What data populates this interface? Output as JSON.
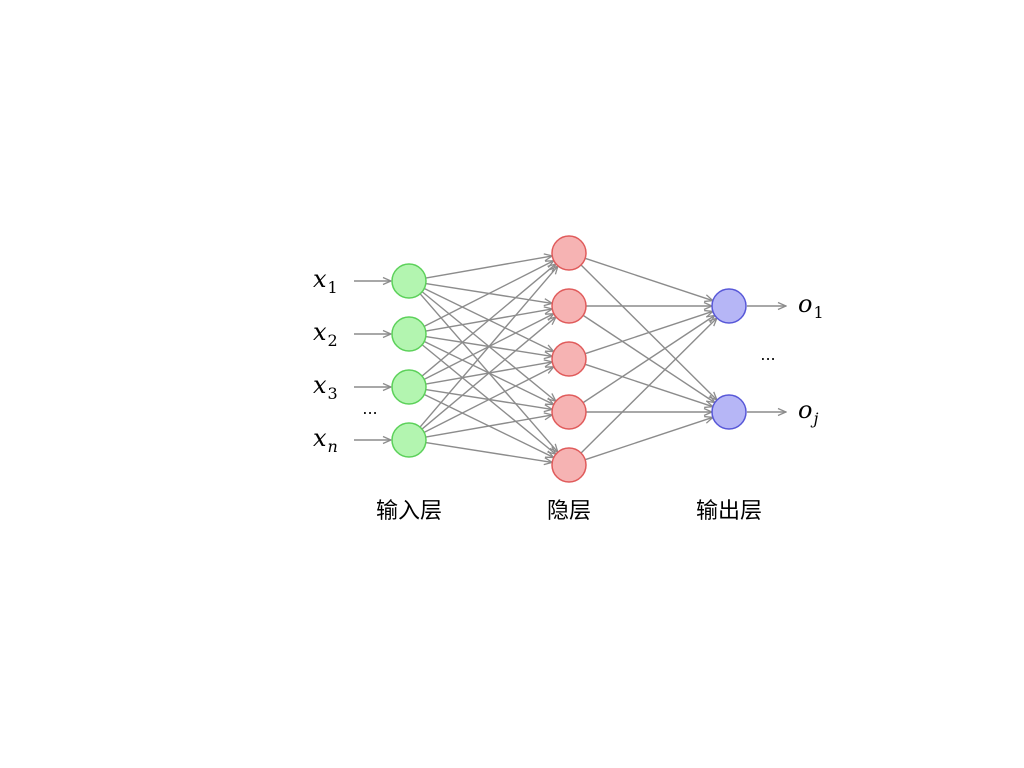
{
  "colors": {
    "input_fill": "#b3f5b0",
    "input_stroke": "#5cd15a",
    "hidden_fill": "#f6b3b3",
    "hidden_stroke": "#e05b5b",
    "output_fill": "#b6b6f6",
    "output_stroke": "#5858d8",
    "edge": "#8c8c8c"
  },
  "inputs": [
    {
      "var": "x",
      "sub": "1"
    },
    {
      "var": "x",
      "sub": "2"
    },
    {
      "var": "x",
      "sub": "3"
    },
    {
      "var": "x",
      "sub": "n"
    }
  ],
  "outputs": [
    {
      "var": "o",
      "sub": "1"
    },
    {
      "var": "o",
      "sub": "j"
    }
  ],
  "hidden_count": 5,
  "ellipsis": "...",
  "layer_labels": {
    "input": "输入层",
    "hidden": "隐层",
    "output": "输出层"
  }
}
